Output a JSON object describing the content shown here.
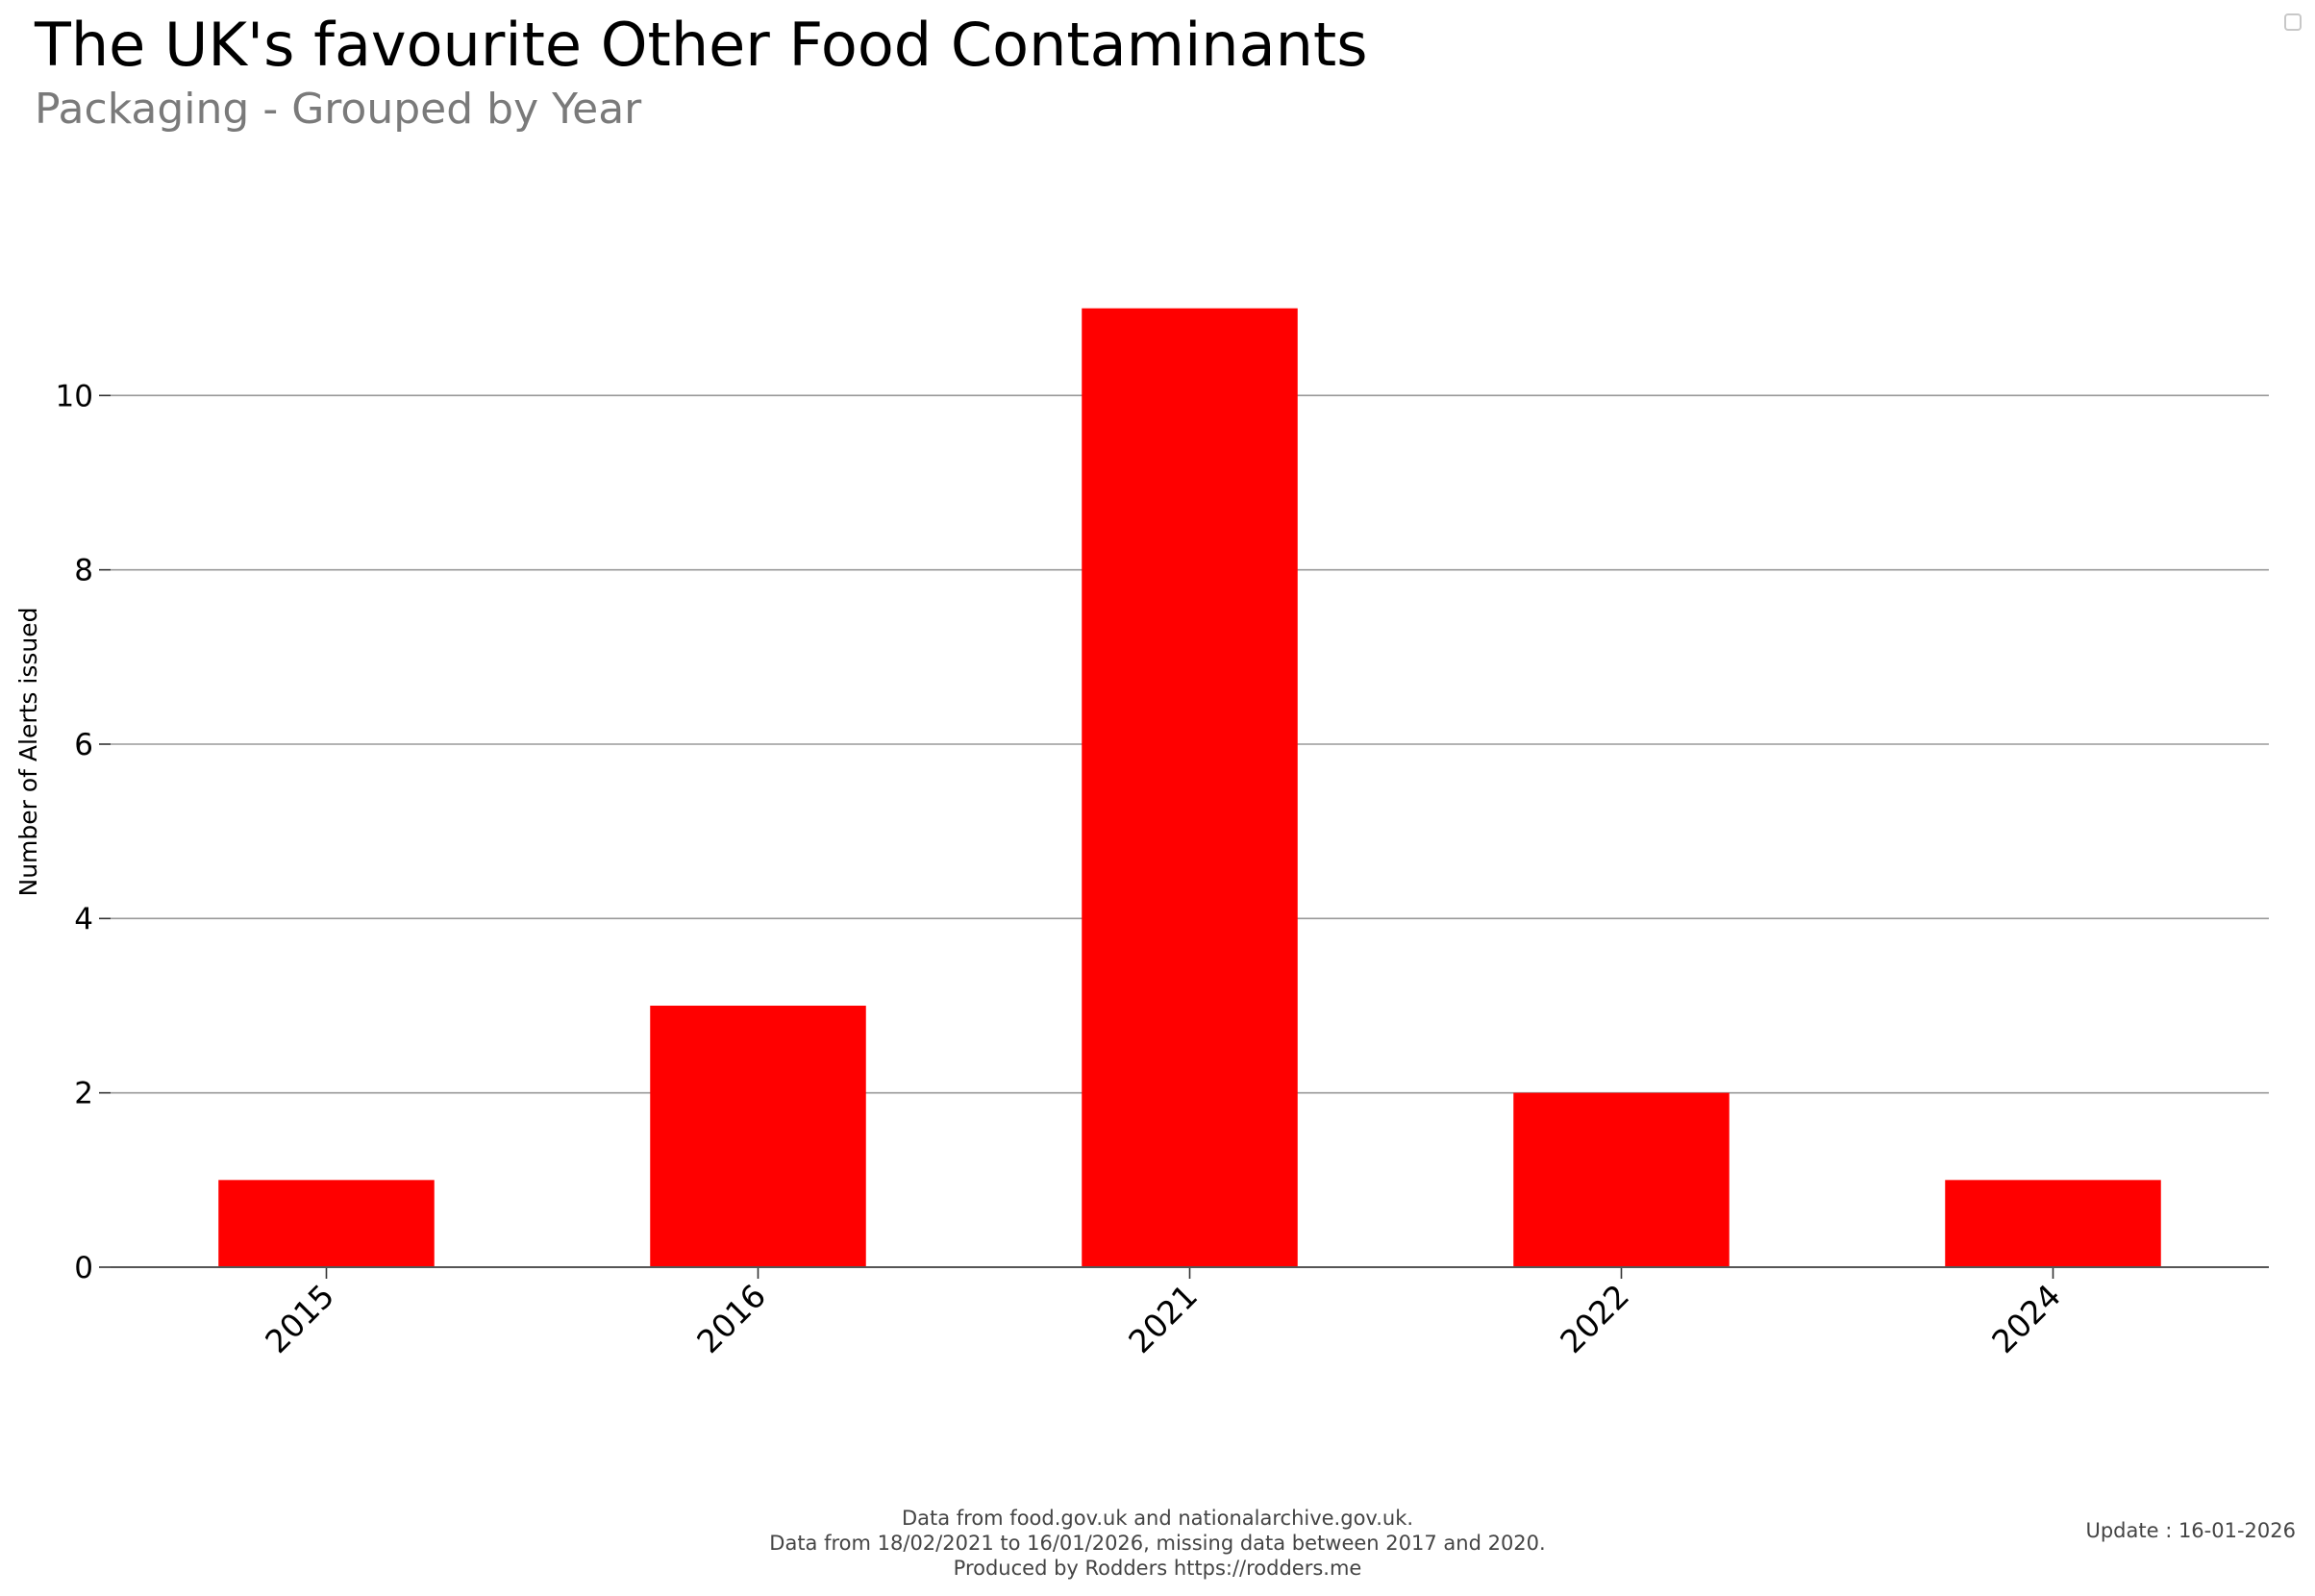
{
  "header": {
    "title": "The UK's favourite Other Food Contaminants",
    "subtitle": "Packaging - Grouped by Year"
  },
  "chart_data": {
    "type": "bar",
    "title": "The UK's favourite Other Food Contaminants",
    "subtitle": "Packaging - Grouped by Year",
    "categories": [
      "2015",
      "2016",
      "2021",
      "2022",
      "2024"
    ],
    "values": [
      1,
      3,
      11,
      2,
      1
    ],
    "xlabel": "",
    "ylabel": "Number of Alerts issued",
    "ylim": [
      0,
      12
    ],
    "yticks": [
      0,
      2,
      4,
      6,
      8,
      10
    ],
    "grid": true,
    "legend": "none",
    "bar_color": "#ff0000"
  },
  "footer": {
    "line1": "Data from food.gov.uk and nationalarchive.gov.uk.",
    "line2": "Data from 18/02/2021 to 16/01/2026, missing data between 2017 and 2020.",
    "line3": "Produced by Rodders https://rodders.me",
    "update": "Update : 16-01-2026"
  }
}
